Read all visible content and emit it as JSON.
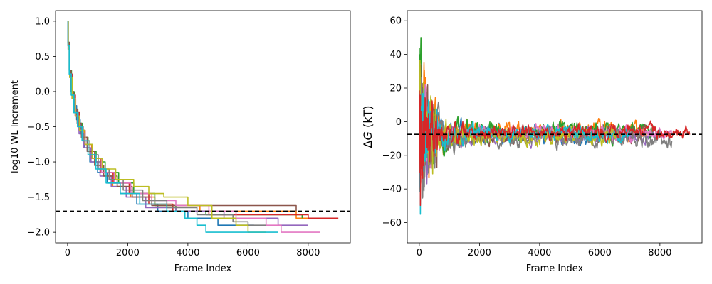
{
  "chart_data": [
    {
      "type": "line",
      "title": "",
      "xlabel": "Frame Index",
      "ylabel": "log10 WL Increment",
      "xlim": [
        -400,
        9400
      ],
      "ylim": [
        -2.15,
        1.15
      ],
      "xticks": [
        0,
        2000,
        4000,
        6000,
        8000
      ],
      "xtick_labels": [
        "0",
        "2000",
        "4000",
        "6000",
        "8000"
      ],
      "yticks": [
        1.0,
        0.5,
        0.0,
        -0.5,
        -1.0,
        -1.5,
        -2.0
      ],
      "ytick_labels": [
        "1.0",
        "0.5",
        "0.0",
        "−0.5",
        "−1.0",
        "−1.5",
        "−2.0"
      ],
      "grid": false,
      "legend": "none",
      "reference_line": {
        "y": -1.7,
        "style": "dashed",
        "color": "#000000"
      },
      "series": [
        {
          "color": "#1f77b4",
          "end_x": 6200,
          "final_y": -1.9,
          "steps": [
            [
              0,
              1.0
            ],
            [
              20,
              0.7
            ],
            [
              60,
              0.3
            ],
            [
              120,
              0.0
            ],
            [
              200,
              -0.2
            ],
            [
              300,
              -0.4
            ],
            [
              420,
              -0.6
            ],
            [
              560,
              -0.8
            ],
            [
              740,
              -1.0
            ],
            [
              1000,
              -1.15
            ],
            [
              1320,
              -1.3
            ],
            [
              1750,
              -1.45
            ],
            [
              2300,
              -1.6
            ],
            [
              3000,
              -1.7
            ],
            [
              4000,
              -1.8
            ],
            [
              5000,
              -1.9
            ]
          ]
        },
        {
          "color": "#ff7f0e",
          "end_x": 9000,
          "final_y": -1.8,
          "steps": [
            [
              0,
              1.0
            ],
            [
              25,
              0.6
            ],
            [
              70,
              0.25
            ],
            [
              140,
              -0.05
            ],
            [
              240,
              -0.3
            ],
            [
              380,
              -0.55
            ],
            [
              560,
              -0.75
            ],
            [
              800,
              -0.95
            ],
            [
              1100,
              -1.15
            ],
            [
              1500,
              -1.35
            ],
            [
              2100,
              -1.5
            ],
            [
              2900,
              -1.62
            ],
            [
              4400,
              -1.7
            ],
            [
              7600,
              -1.8
            ]
          ]
        },
        {
          "color": "#2ca02c",
          "end_x": 7800,
          "final_y": -1.8,
          "steps": [
            [
              0,
              1.0
            ],
            [
              20,
              0.65
            ],
            [
              65,
              0.3
            ],
            [
              130,
              0.0
            ],
            [
              220,
              -0.25
            ],
            [
              340,
              -0.45
            ],
            [
              480,
              -0.65
            ],
            [
              680,
              -0.85
            ],
            [
              950,
              -1.0
            ],
            [
              1250,
              -1.15
            ],
            [
              1700,
              -1.3
            ],
            [
              2200,
              -1.45
            ],
            [
              2900,
              -1.62
            ],
            [
              3600,
              -1.7
            ],
            [
              4600,
              -1.75
            ],
            [
              7800,
              -1.8
            ]
          ]
        },
        {
          "color": "#d62728",
          "end_x": 9000,
          "final_y": -1.8,
          "steps": [
            [
              0,
              1.0
            ],
            [
              20,
              0.65
            ],
            [
              70,
              0.25
            ],
            [
              150,
              -0.05
            ],
            [
              260,
              -0.3
            ],
            [
              400,
              -0.55
            ],
            [
              580,
              -0.75
            ],
            [
              820,
              -0.95
            ],
            [
              1120,
              -1.15
            ],
            [
              1520,
              -1.3
            ],
            [
              2050,
              -1.45
            ],
            [
              2700,
              -1.6
            ],
            [
              3500,
              -1.7
            ],
            [
              4700,
              -1.75
            ],
            [
              8000,
              -1.8
            ]
          ]
        },
        {
          "color": "#9467bd",
          "end_x": 8000,
          "final_y": -1.9,
          "steps": [
            [
              0,
              1.0
            ],
            [
              20,
              0.6
            ],
            [
              70,
              0.2
            ],
            [
              150,
              -0.1
            ],
            [
              250,
              -0.35
            ],
            [
              380,
              -0.6
            ],
            [
              540,
              -0.8
            ],
            [
              780,
              -1.0
            ],
            [
              1080,
              -1.2
            ],
            [
              1450,
              -1.35
            ],
            [
              1950,
              -1.5
            ],
            [
              2600,
              -1.65
            ],
            [
              3600,
              -1.7
            ],
            [
              5200,
              -1.8
            ],
            [
              7000,
              -1.9
            ]
          ]
        },
        {
          "color": "#8c564b",
          "end_x": 7600,
          "final_y": -1.7,
          "steps": [
            [
              0,
              1.0
            ],
            [
              15,
              0.7
            ],
            [
              55,
              0.3
            ],
            [
              115,
              0.0
            ],
            [
              200,
              -0.25
            ],
            [
              320,
              -0.45
            ],
            [
              460,
              -0.65
            ],
            [
              650,
              -0.85
            ],
            [
              900,
              -1.05
            ],
            [
              1200,
              -1.2
            ],
            [
              1650,
              -1.35
            ],
            [
              2150,
              -1.5
            ],
            [
              2800,
              -1.62
            ],
            [
              7600,
              -1.7
            ]
          ]
        },
        {
          "color": "#e377c2",
          "end_x": 8400,
          "final_y": -2.0,
          "steps": [
            [
              0,
              1.0
            ],
            [
              20,
              0.6
            ],
            [
              75,
              0.2
            ],
            [
              160,
              -0.1
            ],
            [
              270,
              -0.35
            ],
            [
              410,
              -0.55
            ],
            [
              590,
              -0.75
            ],
            [
              830,
              -0.95
            ],
            [
              1130,
              -1.15
            ],
            [
              1550,
              -1.3
            ],
            [
              2100,
              -1.45
            ],
            [
              2800,
              -1.55
            ],
            [
              3600,
              -1.62
            ],
            [
              4700,
              -1.7
            ],
            [
              5600,
              -1.8
            ],
            [
              6600,
              -1.9
            ],
            [
              7100,
              -2.0
            ]
          ]
        },
        {
          "color": "#7f7f7f",
          "end_x": 6600,
          "final_y": -1.9,
          "steps": [
            [
              0,
              1.0
            ],
            [
              18,
              0.65
            ],
            [
              60,
              0.25
            ],
            [
              130,
              -0.05
            ],
            [
              230,
              -0.3
            ],
            [
              360,
              -0.5
            ],
            [
              520,
              -0.7
            ],
            [
              740,
              -0.9
            ],
            [
              1020,
              -1.1
            ],
            [
              1380,
              -1.25
            ],
            [
              1850,
              -1.4
            ],
            [
              2500,
              -1.55
            ],
            [
              3300,
              -1.65
            ],
            [
              4300,
              -1.75
            ],
            [
              5500,
              -1.85
            ],
            [
              6000,
              -1.9
            ]
          ]
        },
        {
          "color": "#bcbd22",
          "end_x": 6600,
          "final_y": -2.0,
          "steps": [
            [
              0,
              1.0
            ],
            [
              22,
              0.6
            ],
            [
              70,
              0.2
            ],
            [
              150,
              -0.1
            ],
            [
              260,
              -0.35
            ],
            [
              400,
              -0.55
            ],
            [
              580,
              -0.75
            ],
            [
              820,
              -0.95
            ],
            [
              1150,
              -1.1
            ],
            [
              1600,
              -1.25
            ],
            [
              2200,
              -1.35
            ],
            [
              2700,
              -1.45
            ],
            [
              3200,
              -1.5
            ],
            [
              4000,
              -1.62
            ],
            [
              4800,
              -1.8
            ],
            [
              5600,
              -1.9
            ],
            [
              6000,
              -2.0
            ]
          ]
        },
        {
          "color": "#17becf",
          "end_x": 7000,
          "final_y": -2.0,
          "steps": [
            [
              0,
              1.0
            ],
            [
              15,
              0.65
            ],
            [
              55,
              0.25
            ],
            [
              120,
              -0.05
            ],
            [
              210,
              -0.3
            ],
            [
              330,
              -0.5
            ],
            [
              480,
              -0.7
            ],
            [
              680,
              -0.9
            ],
            [
              940,
              -1.1
            ],
            [
              1280,
              -1.3
            ],
            [
              1750,
              -1.45
            ],
            [
              2400,
              -1.6
            ],
            [
              3300,
              -1.7
            ],
            [
              3900,
              -1.8
            ],
            [
              4300,
              -1.9
            ],
            [
              4600,
              -2.0
            ]
          ]
        }
      ]
    },
    {
      "type": "line",
      "title": "",
      "xlabel": "Frame Index",
      "ylabel_prefix": "Δ",
      "ylabel_var": "G",
      "ylabel_suffix": " (kT)",
      "xlim": [
        -400,
        9400
      ],
      "ylim": [
        -72,
        66
      ],
      "xticks": [
        0,
        2000,
        4000,
        6000,
        8000
      ],
      "xtick_labels": [
        "0",
        "2000",
        "4000",
        "6000",
        "8000"
      ],
      "yticks": [
        60,
        40,
        20,
        0,
        -20,
        -40,
        -60
      ],
      "ytick_labels": [
        "60",
        "40",
        "20",
        "0",
        "−20",
        "−40",
        "−60"
      ],
      "grid": false,
      "legend": "none",
      "reference_line": {
        "y": -7.5,
        "style": "dashed",
        "color": "#000000"
      },
      "series": [
        {
          "color": "#1f77b4",
          "end_x": 6200,
          "center": -7,
          "spread": 14,
          "seed": 11,
          "min": -60,
          "max": 60
        },
        {
          "color": "#ff7f0e",
          "end_x": 7600,
          "center": -5,
          "spread": 14,
          "seed": 23,
          "min": -40,
          "max": 35
        },
        {
          "color": "#2ca02c",
          "end_x": 7800,
          "center": -6,
          "spread": 15,
          "seed": 37,
          "min": -50,
          "max": 50
        },
        {
          "color": "#9467bd",
          "end_x": 8000,
          "center": -9,
          "spread": 12,
          "seed": 41,
          "min": -55,
          "max": 40
        },
        {
          "color": "#8c564b",
          "end_x": 7600,
          "center": -8,
          "spread": 13,
          "seed": 53,
          "min": -45,
          "max": 35
        },
        {
          "color": "#e377c2",
          "end_x": 8400,
          "center": -7,
          "spread": 12,
          "seed": 67,
          "min": -40,
          "max": 30
        },
        {
          "color": "#7f7f7f",
          "end_x": 8400,
          "center": -10,
          "spread": 15,
          "seed": 71,
          "min": -50,
          "max": 30
        },
        {
          "color": "#bcbd22",
          "end_x": 6600,
          "center": -9,
          "spread": 14,
          "seed": 83,
          "min": -66,
          "max": 45
        },
        {
          "color": "#17becf",
          "end_x": 7000,
          "center": -7,
          "spread": 12,
          "seed": 97,
          "min": -55,
          "max": 60
        },
        {
          "color": "#d62728",
          "end_x": 9000,
          "center": -6,
          "spread": 12,
          "seed": 5,
          "min": -55,
          "max": 35
        }
      ]
    }
  ]
}
